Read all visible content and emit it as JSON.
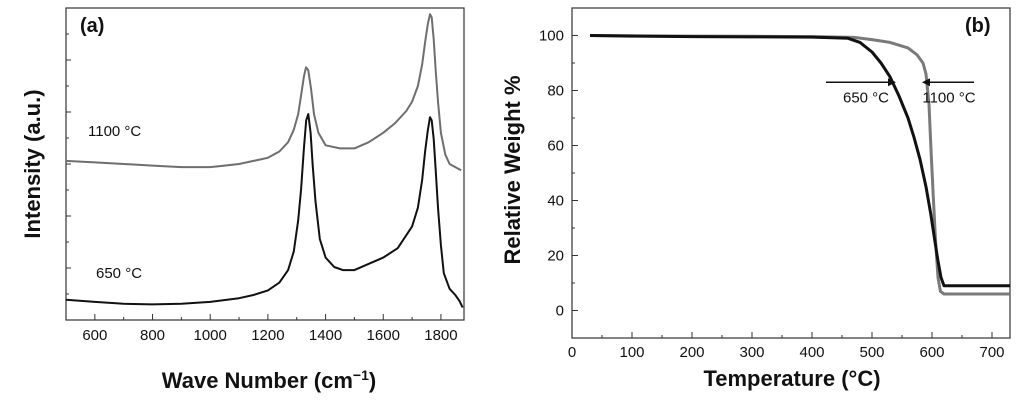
{
  "chart_data": [
    {
      "type": "line",
      "panel_label": "(a)",
      "xlabel": "Wave Number (cm",
      "xlabel_sup": "−1",
      "xlabel_suffix": ")",
      "ylabel": "Intensity (a.u.)",
      "xlim": [
        500,
        1880
      ],
      "ylim": [
        0,
        1
      ],
      "x_ticks": [
        600,
        800,
        1000,
        1200,
        1400,
        1600,
        1800
      ],
      "y_ticklabels_shown": false,
      "grid": false,
      "series": [
        {
          "name": "1100 °C",
          "color": "#6e6e6e",
          "x": [
            500,
            600,
            700,
            800,
            900,
            1000,
            1050,
            1100,
            1150,
            1200,
            1240,
            1270,
            1290,
            1305,
            1315,
            1325,
            1332,
            1340,
            1350,
            1360,
            1375,
            1400,
            1450,
            1500,
            1550,
            1600,
            1640,
            1680,
            1700,
            1720,
            1735,
            1745,
            1755,
            1762,
            1768,
            1775,
            1782,
            1790,
            1800,
            1815,
            1830,
            1850,
            1870
          ],
          "values": [
            0.51,
            0.505,
            0.5,
            0.495,
            0.49,
            0.49,
            0.495,
            0.5,
            0.51,
            0.52,
            0.54,
            0.57,
            0.61,
            0.66,
            0.72,
            0.78,
            0.81,
            0.8,
            0.74,
            0.66,
            0.6,
            0.56,
            0.55,
            0.55,
            0.57,
            0.6,
            0.63,
            0.67,
            0.7,
            0.75,
            0.82,
            0.89,
            0.95,
            0.98,
            0.97,
            0.9,
            0.8,
            0.7,
            0.6,
            0.53,
            0.5,
            0.49,
            0.48
          ]
        },
        {
          "name": "650 °C",
          "color": "#111111",
          "x": [
            500,
            600,
            700,
            800,
            900,
            1000,
            1100,
            1150,
            1200,
            1240,
            1270,
            1290,
            1305,
            1315,
            1325,
            1333,
            1340,
            1348,
            1355,
            1365,
            1380,
            1400,
            1430,
            1460,
            1500,
            1550,
            1600,
            1650,
            1700,
            1720,
            1735,
            1745,
            1755,
            1762,
            1768,
            1775,
            1782,
            1790,
            1800,
            1810,
            1830,
            1850,
            1865,
            1875
          ],
          "values": [
            0.065,
            0.058,
            0.052,
            0.05,
            0.052,
            0.058,
            0.07,
            0.08,
            0.095,
            0.12,
            0.16,
            0.22,
            0.32,
            0.42,
            0.55,
            0.64,
            0.66,
            0.6,
            0.5,
            0.38,
            0.26,
            0.2,
            0.17,
            0.16,
            0.16,
            0.18,
            0.2,
            0.23,
            0.3,
            0.36,
            0.45,
            0.54,
            0.61,
            0.65,
            0.64,
            0.58,
            0.48,
            0.36,
            0.24,
            0.15,
            0.1,
            0.08,
            0.06,
            0.04
          ]
        }
      ],
      "annotations": [
        "1100 °C",
        "650 °C"
      ]
    },
    {
      "type": "line",
      "panel_label": "(b)",
      "xlabel": "Temperature (°C)",
      "ylabel": "Relative Weight %",
      "xlim": [
        0,
        730
      ],
      "ylim": [
        -10,
        110
      ],
      "x_ticks": [
        0,
        100,
        200,
        300,
        400,
        500,
        600,
        700
      ],
      "y_ticks": [
        0,
        20,
        40,
        60,
        80,
        100
      ],
      "grid": false,
      "series": [
        {
          "name": "1100 °C",
          "color": "#7a7a7a",
          "x": [
            30,
            100,
            200,
            300,
            400,
            470,
            500,
            530,
            560,
            575,
            585,
            590,
            595,
            598,
            602,
            606,
            610,
            614,
            620,
            650,
            700,
            730
          ],
          "values": [
            100,
            99.9,
            99.8,
            99.7,
            99.6,
            99.3,
            98.5,
            97.5,
            95.5,
            93,
            90,
            86,
            75,
            60,
            42,
            25,
            12,
            7,
            6,
            6,
            6,
            6
          ]
        },
        {
          "name": "650 °C",
          "color": "#111111",
          "x": [
            30,
            100,
            200,
            300,
            400,
            460,
            480,
            500,
            515,
            530,
            545,
            560,
            570,
            580,
            590,
            598,
            605,
            610,
            615,
            620,
            650,
            700,
            730
          ],
          "values": [
            100,
            99.8,
            99.6,
            99.5,
            99.4,
            99.0,
            97.5,
            94,
            90,
            85,
            78,
            70,
            63,
            55,
            45,
            35,
            25,
            18,
            12,
            9,
            9,
            9,
            9
          ]
        }
      ],
      "annotations": [
        {
          "text": "650 °C",
          "x": 540,
          "y": 83
        },
        {
          "text": "1100 °C",
          "x": 620,
          "y": 83
        }
      ]
    }
  ]
}
